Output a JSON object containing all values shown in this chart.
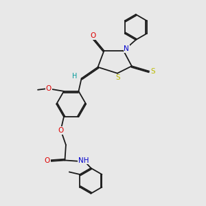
{
  "bg_color": "#e8e8e8",
  "bond_color": "#1a1a1a",
  "lw": 1.3,
  "dbo": 0.055,
  "fs": 7.5,
  "colors": {
    "O": "#dd0000",
    "N": "#0000cc",
    "S": "#bbbb00",
    "H": "#009999",
    "C": "#1a1a1a"
  },
  "figsize": [
    3.0,
    3.0
  ],
  "dpi": 100
}
